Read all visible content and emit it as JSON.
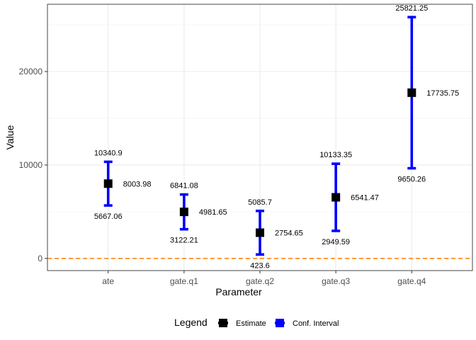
{
  "chart_data": {
    "type": "errorbar",
    "title": "",
    "xlabel": "Parameter",
    "ylabel": "Value",
    "ylim": [
      -1300,
      27200
    ],
    "yticks": [
      0,
      10000,
      20000
    ],
    "grid": true,
    "reference_line": {
      "y": 0,
      "style": "dashed",
      "color": "#FF7F00"
    },
    "categories": [
      "ate",
      "gate.q1",
      "gate.q2",
      "gate.q3",
      "gate.q4"
    ],
    "estimates": [
      8003.98,
      4981.65,
      2754.65,
      6541.47,
      17735.75
    ],
    "lower": [
      5667.06,
      3122.21,
      423.6,
      2949.59,
      9650.26
    ],
    "upper": [
      10340.9,
      6841.08,
      5085.7,
      10133.35,
      25821.25
    ],
    "estimate_labels": [
      "8003.98",
      "4981.65",
      "2754.65",
      "6541.47",
      "17735.75"
    ],
    "lower_labels": [
      "5667.06",
      "3122.21",
      "423.6",
      "2949.59",
      "9650.26"
    ],
    "upper_labels": [
      "10340.9",
      "6841.08",
      "5085.7",
      "10133.35",
      "25821.25"
    ],
    "legend": {
      "title": "Legend",
      "position": "bottom",
      "entries": [
        {
          "label": "Estimate",
          "color": "#000000"
        },
        {
          "label": "Conf. Interval",
          "color": "#0000FF"
        }
      ]
    }
  }
}
